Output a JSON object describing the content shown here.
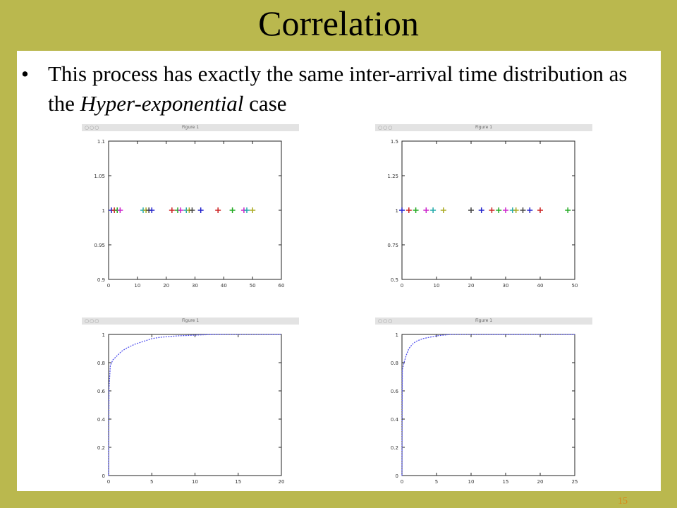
{
  "slide": {
    "title": "Correlation",
    "bullet_before": "This process has exactly the same inter-arrival time distribution as the ",
    "bullet_emph": "Hyper-exponential",
    "bullet_after": " case",
    "page_number": "15"
  },
  "figure_windows": [
    {
      "title": "Figure 1",
      "controls": "○○○"
    },
    {
      "title": "Figure 1",
      "controls": "○○○"
    },
    {
      "title": "Figure 1",
      "controls": "○○○"
    },
    {
      "title": "Figure 1",
      "controls": "○○○"
    }
  ],
  "colors": {
    "background": "#bab84e",
    "accent": "#d78a1c",
    "curve": "#5555ee"
  },
  "chart_data": [
    {
      "type": "scatter",
      "marker": "plus",
      "xlim": [
        0,
        60
      ],
      "ylim": [
        0.9,
        1.1
      ],
      "xticks": [
        "0",
        "10",
        "20",
        "30",
        "40",
        "50",
        "60"
      ],
      "yticks": [
        "0.9",
        "0.95",
        "1",
        "1.05",
        "1.1"
      ],
      "points_x": [
        1,
        2,
        3,
        4,
        12,
        13,
        14,
        15,
        22,
        24,
        25,
        27,
        28,
        29,
        32,
        38,
        43,
        47,
        48,
        50
      ],
      "y_value": 1
    },
    {
      "type": "scatter",
      "marker": "plus",
      "xlim": [
        0,
        50
      ],
      "ylim": [
        0.5,
        1.5
      ],
      "xticks": [
        "0",
        "10",
        "20",
        "30",
        "40",
        "50"
      ],
      "yticks": [
        "0.5",
        "0.75",
        "1",
        "1.25",
        "1.5"
      ],
      "points_x": [
        0,
        2,
        4,
        7,
        9,
        12,
        20,
        23,
        26,
        28,
        30,
        32,
        33,
        35,
        37,
        40,
        48
      ],
      "y_value": 1
    },
    {
      "type": "line",
      "xlim": [
        0,
        20
      ],
      "ylim": [
        0,
        1
      ],
      "xticks": [
        "0",
        "5",
        "10",
        "15",
        "20"
      ],
      "yticks": [
        "0",
        "0.2",
        "0.4",
        "0.6",
        "0.8",
        "1"
      ],
      "x": [
        0,
        0.05,
        0.2,
        0.5,
        1,
        1.5,
        2,
        3,
        4,
        5,
        6,
        8,
        10,
        12,
        15,
        20
      ],
      "y": [
        0,
        0.62,
        0.78,
        0.82,
        0.85,
        0.88,
        0.9,
        0.93,
        0.95,
        0.97,
        0.98,
        0.99,
        0.995,
        1,
        1,
        1
      ]
    },
    {
      "type": "line",
      "xlim": [
        0,
        25
      ],
      "ylim": [
        0,
        1
      ],
      "xticks": [
        "0",
        "5",
        "10",
        "15",
        "20",
        "25"
      ],
      "yticks": [
        "0",
        "0.2",
        "0.4",
        "0.6",
        "0.8",
        "1"
      ],
      "x": [
        0,
        0.05,
        0.3,
        0.6,
        1,
        1.5,
        2,
        3,
        4,
        5,
        6,
        7,
        9,
        12,
        15,
        20,
        25
      ],
      "y": [
        0,
        0.75,
        0.8,
        0.85,
        0.9,
        0.93,
        0.95,
        0.97,
        0.98,
        0.99,
        0.995,
        1,
        1,
        1,
        1,
        1,
        1
      ]
    }
  ]
}
